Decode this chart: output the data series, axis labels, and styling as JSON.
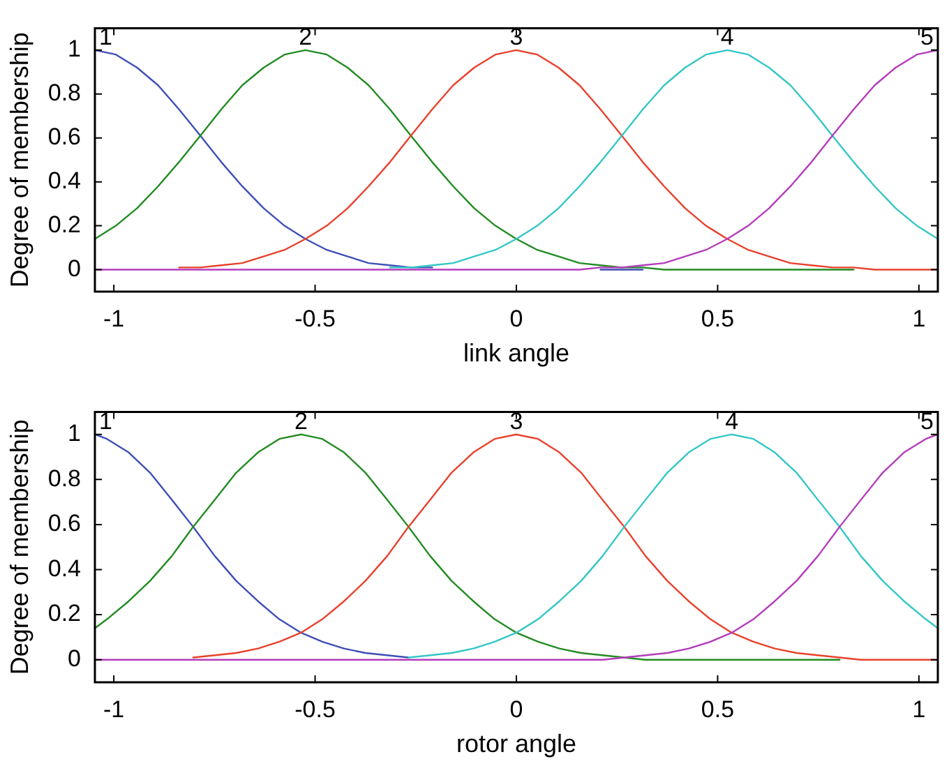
{
  "chart_data": [
    {
      "type": "line",
      "xlabel": "link angle",
      "ylabel": "Degree of membership",
      "x": [
        -1.047,
        -0.995,
        -0.942,
        -0.89,
        -0.838,
        -0.785,
        -0.733,
        -0.681,
        -0.628,
        -0.576,
        -0.524,
        -0.471,
        -0.419,
        -0.367,
        -0.314,
        -0.262,
        -0.209,
        -0.157,
        -0.105,
        -0.052,
        0,
        0.052,
        0.105,
        0.157,
        0.209,
        0.262,
        0.314,
        0.367,
        0.419,
        0.471,
        0.524,
        0.576,
        0.628,
        0.681,
        0.733,
        0.785,
        0.838,
        0.89,
        0.942,
        0.995,
        1.047
      ],
      "series": [
        {
          "name": "1",
          "color": "#3f4fb5",
          "values": [
            1,
            0.98,
            0.92,
            0.84,
            0.73,
            0.61,
            0.49,
            0.38,
            0.28,
            0.2,
            0.14,
            0.09,
            0.06,
            0.03,
            0.02,
            0.01,
            0.01,
            null,
            null,
            null,
            null,
            null,
            null,
            null,
            0,
            0,
            0,
            null,
            null,
            null,
            null,
            null,
            null,
            null,
            null,
            null,
            null,
            null,
            null,
            null,
            null
          ]
        },
        {
          "name": "2",
          "color": "#228b22",
          "values": [
            0.14,
            0.2,
            0.28,
            0.38,
            0.49,
            0.61,
            0.73,
            0.84,
            0.92,
            0.98,
            1,
            0.98,
            0.92,
            0.84,
            0.73,
            0.61,
            0.49,
            0.38,
            0.28,
            0.2,
            0.14,
            0.09,
            0.06,
            0.03,
            0.02,
            0.01,
            0.01,
            0,
            0,
            0,
            0,
            0,
            0,
            0,
            0,
            0,
            0,
            null,
            null,
            null,
            null
          ]
        },
        {
          "name": "3",
          "color": "#e8412c",
          "values": [
            null,
            null,
            null,
            null,
            0.01,
            0.01,
            0.02,
            0.03,
            0.06,
            0.09,
            0.14,
            0.2,
            0.28,
            0.38,
            0.49,
            0.61,
            0.73,
            0.84,
            0.92,
            0.98,
            1,
            0.98,
            0.92,
            0.84,
            0.73,
            0.61,
            0.49,
            0.38,
            0.28,
            0.2,
            0.14,
            0.09,
            0.06,
            0.03,
            0.02,
            0.01,
            0.01,
            0,
            0,
            0,
            0
          ]
        },
        {
          "name": "4",
          "color": "#34c6c6",
          "values": [
            null,
            null,
            null,
            null,
            null,
            null,
            null,
            null,
            null,
            null,
            null,
            null,
            null,
            null,
            0.01,
            0.01,
            0.02,
            0.03,
            0.06,
            0.09,
            0.14,
            0.2,
            0.28,
            0.38,
            0.49,
            0.61,
            0.73,
            0.84,
            0.92,
            0.98,
            1,
            0.98,
            0.92,
            0.84,
            0.73,
            0.61,
            0.49,
            0.38,
            0.28,
            0.2,
            0.14
          ]
        },
        {
          "name": "5",
          "color": "#b43cbc",
          "values": [
            0,
            0,
            0,
            0,
            0,
            0,
            0,
            0,
            0,
            0,
            0,
            0,
            0,
            0,
            0,
            0,
            0,
            0,
            0,
            0,
            0,
            0,
            0,
            0,
            0.01,
            0.01,
            0.02,
            0.03,
            0.06,
            0.09,
            0.14,
            0.2,
            0.28,
            0.38,
            0.49,
            0.61,
            0.73,
            0.84,
            0.92,
            0.98,
            1
          ]
        }
      ],
      "xlim": [
        -1.047,
        1.047
      ],
      "ylim": [
        -0.1,
        1.1
      ],
      "xticks": [
        -1,
        -0.5,
        0,
        0.5,
        1
      ],
      "yticks": [
        0,
        0.2,
        0.4,
        0.6,
        0.8,
        1
      ]
    },
    {
      "type": "line",
      "xlabel": "rotor angle",
      "ylabel": "Degree of membership",
      "x": [
        -1.047,
        -1.017,
        -0.963,
        -0.91,
        -0.856,
        -0.803,
        -0.749,
        -0.696,
        -0.642,
        -0.589,
        -0.535,
        -0.482,
        -0.428,
        -0.375,
        -0.321,
        -0.268,
        -0.214,
        -0.161,
        -0.107,
        -0.054,
        0,
        0.054,
        0.107,
        0.161,
        0.214,
        0.268,
        0.321,
        0.375,
        0.428,
        0.482,
        0.535,
        0.589,
        0.642,
        0.696,
        0.749,
        0.803,
        0.856,
        0.91,
        0.963,
        1.017,
        1.047
      ],
      "series": [
        {
          "name": "1",
          "color": "#3f4fb5",
          "values": [
            1,
            0.98,
            0.92,
            0.83,
            0.71,
            0.59,
            0.46,
            0.35,
            0.26,
            0.18,
            0.12,
            0.08,
            0.05,
            0.03,
            0.02,
            0.01,
            null,
            null,
            null,
            null,
            null,
            null,
            null,
            null,
            null,
            null,
            null,
            null,
            null,
            null,
            null,
            null,
            null,
            null,
            null,
            null,
            null,
            null,
            null,
            null,
            null
          ]
        },
        {
          "name": "2",
          "color": "#228b22",
          "values": [
            0.14,
            0.18,
            0.26,
            0.35,
            0.46,
            0.59,
            0.71,
            0.83,
            0.92,
            0.98,
            1,
            0.98,
            0.92,
            0.83,
            0.71,
            0.59,
            0.46,
            0.35,
            0.26,
            0.18,
            0.12,
            0.08,
            0.05,
            0.03,
            0.02,
            0.01,
            0,
            0,
            0,
            0,
            0,
            0,
            0,
            0,
            0,
            0,
            null,
            null,
            null,
            null,
            null
          ]
        },
        {
          "name": "3",
          "color": "#e8412c",
          "values": [
            null,
            null,
            null,
            null,
            null,
            0.01,
            0.02,
            0.03,
            0.05,
            0.08,
            0.12,
            0.18,
            0.26,
            0.35,
            0.46,
            0.59,
            0.71,
            0.83,
            0.92,
            0.98,
            1,
            0.98,
            0.92,
            0.83,
            0.71,
            0.59,
            0.46,
            0.35,
            0.26,
            0.18,
            0.12,
            0.08,
            0.05,
            0.03,
            0.02,
            0.01,
            0,
            0,
            0,
            0,
            0
          ]
        },
        {
          "name": "4",
          "color": "#34c6c6",
          "values": [
            null,
            null,
            null,
            null,
            null,
            null,
            null,
            null,
            null,
            null,
            null,
            null,
            null,
            null,
            null,
            0.01,
            0.02,
            0.03,
            0.05,
            0.08,
            0.12,
            0.18,
            0.26,
            0.35,
            0.46,
            0.59,
            0.71,
            0.83,
            0.92,
            0.98,
            1,
            0.98,
            0.92,
            0.83,
            0.71,
            0.59,
            0.46,
            0.35,
            0.26,
            0.18,
            0.14
          ]
        },
        {
          "name": "5",
          "color": "#b43cbc",
          "values": [
            0,
            0,
            0,
            0,
            0,
            0,
            0,
            0,
            0,
            0,
            0,
            0,
            0,
            0,
            0,
            0,
            0,
            0,
            0,
            0,
            0,
            0,
            0,
            0,
            0,
            0.01,
            0.02,
            0.03,
            0.05,
            0.08,
            0.12,
            0.18,
            0.26,
            0.35,
            0.46,
            0.59,
            0.71,
            0.83,
            0.92,
            0.98,
            1
          ]
        }
      ],
      "xlim": [
        -1.047,
        1.047
      ],
      "ylim": [
        -0.1,
        1.1
      ],
      "xticks": [
        -1,
        -0.5,
        0,
        0.5,
        1
      ],
      "yticks": [
        0,
        0.2,
        0.4,
        0.6,
        0.8,
        1
      ]
    }
  ]
}
